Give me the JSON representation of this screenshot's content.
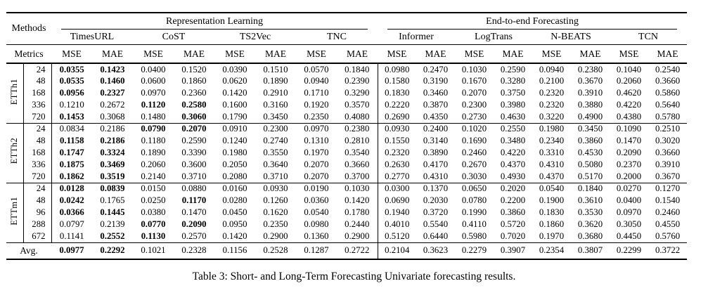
{
  "colors": {
    "background": "#ffffff",
    "text": "#000000",
    "rule": "#000000"
  },
  "caption": "Table 3: Short- and Long-Term Forecasting Univariate forecasting results.",
  "table": {
    "corner_top_label": "Methods",
    "corner_bottom_label": "Metrics",
    "metrics_per_method": [
      "MSE",
      "MAE"
    ],
    "group_headers": [
      {
        "label": "Representation Learning",
        "methods": [
          "TimesURL",
          "CoST",
          "TS2Vec",
          "TNC"
        ]
      },
      {
        "label": "End-to-end Forecasting",
        "methods": [
          "Informer",
          "LogTrans",
          "N-BEATS",
          "TCN"
        ]
      }
    ],
    "row_groups": [
      {
        "name": "ETTh1",
        "rows": [
          {
            "horizon": "24",
            "values": [
              "0.0355",
              "0.1423",
              "0.0400",
              "0.1520",
              "0.0390",
              "0.1510",
              "0.0570",
              "0.1840",
              "0.0980",
              "0.2470",
              "0.1030",
              "0.2590",
              "0.0940",
              "0.2380",
              "0.1040",
              "0.2540"
            ],
            "bold": [
              0,
              1
            ]
          },
          {
            "horizon": "48",
            "values": [
              "0.0535",
              "0.1460",
              "0.0600",
              "0.1860",
              "0.0620",
              "0.1890",
              "0.0940",
              "0.2390",
              "0.1580",
              "0.3190",
              "0.1670",
              "0.3280",
              "0.2100",
              "0.3670",
              "0.2060",
              "0.3660"
            ],
            "bold": [
              0,
              1
            ]
          },
          {
            "horizon": "168",
            "values": [
              "0.0956",
              "0.2327",
              "0.0970",
              "0.2360",
              "0.1420",
              "0.2910",
              "0.1710",
              "0.3290",
              "0.1830",
              "0.3460",
              "0.2070",
              "0.3750",
              "0.2320",
              "0.3910",
              "0.4620",
              "0.5860"
            ],
            "bold": [
              0,
              1
            ]
          },
          {
            "horizon": "336",
            "values": [
              "0.1210",
              "0.2672",
              "0.1120",
              "0.2580",
              "0.1600",
              "0.3160",
              "0.1920",
              "0.3570",
              "0.2220",
              "0.3870",
              "0.2300",
              "0.3980",
              "0.2320",
              "0.3880",
              "0.4220",
              "0.5640"
            ],
            "bold": [
              2,
              3
            ]
          },
          {
            "horizon": "720",
            "values": [
              "0.1453",
              "0.3068",
              "0.1480",
              "0.3060",
              "0.1790",
              "0.3450",
              "0.2350",
              "0.4080",
              "0.2690",
              "0.4350",
              "0.2730",
              "0.4630",
              "0.3220",
              "0.4900",
              "0.4380",
              "0.5780"
            ],
            "bold": [
              0,
              3
            ]
          }
        ]
      },
      {
        "name": "ETTh2",
        "rows": [
          {
            "horizon": "24",
            "values": [
              "0.0834",
              "0.2186",
              "0.0790",
              "0.2070",
              "0.0910",
              "0.2300",
              "0.0970",
              "0.2380",
              "0.0930",
              "0.2400",
              "0.1020",
              "0.2550",
              "0.1980",
              "0.3450",
              "0.1090",
              "0.2510"
            ],
            "bold": [
              2,
              3
            ]
          },
          {
            "horizon": "48",
            "values": [
              "0.1158",
              "0.2186",
              "0.1180",
              "0.2590",
              "0.1240",
              "0.2740",
              "0.1310",
              "0.2810",
              "0.1550",
              "0.3140",
              "0.1690",
              "0.3480",
              "0.2340",
              "0.3860",
              "0.1470",
              "0.3020"
            ],
            "bold": [
              0,
              1
            ]
          },
          {
            "horizon": "168",
            "values": [
              "0.1747",
              "0.3324",
              "0.1890",
              "0.3390",
              "0.1980",
              "0.3550",
              "0.1970",
              "0.3540",
              "0.2320",
              "0.3890",
              "0.2460",
              "0.4220",
              "0.3310",
              "0.4530",
              "0.2090",
              "0.3660"
            ],
            "bold": [
              0,
              1
            ]
          },
          {
            "horizon": "336",
            "values": [
              "0.1875",
              "0.3469",
              "0.2060",
              "0.3600",
              "0.2050",
              "0.3640",
              "0.2070",
              "0.3660",
              "0.2630",
              "0.4170",
              "0.2670",
              "0.4370",
              "0.4310",
              "0.5080",
              "0.2370",
              "0.3910"
            ],
            "bold": [
              0,
              1
            ]
          },
          {
            "horizon": "720",
            "values": [
              "0.1862",
              "0.3519",
              "0.2140",
              "0.3710",
              "0.2080",
              "0.3710",
              "0.2070",
              "0.3700",
              "0.2770",
              "0.4310",
              "0.3030",
              "0.4930",
              "0.4370",
              "0.5170",
              "0.2000",
              "0.3670"
            ],
            "bold": [
              0,
              1
            ]
          }
        ]
      },
      {
        "name": "ETTm1",
        "rows": [
          {
            "horizon": "24",
            "values": [
              "0.0128",
              "0.0839",
              "0.0150",
              "0.0880",
              "0.0160",
              "0.0930",
              "0.0190",
              "0.1030",
              "0.0300",
              "0.1370",
              "0.0650",
              "0.2020",
              "0.0540",
              "0.1840",
              "0.0270",
              "0.1270"
            ],
            "bold": [
              0,
              1
            ]
          },
          {
            "horizon": "48",
            "values": [
              "0.0242",
              "0.1765",
              "0.0250",
              "0.1170",
              "0.0280",
              "0.1260",
              "0.0360",
              "0.1420",
              "0.0690",
              "0.2030",
              "0.0780",
              "0.2200",
              "0.1900",
              "0.3610",
              "0.0400",
              "0.1540"
            ],
            "bold": [
              0,
              3
            ]
          },
          {
            "horizon": "96",
            "values": [
              "0.0366",
              "0.1445",
              "0.0380",
              "0.1470",
              "0.0450",
              "0.1620",
              "0.0540",
              "0.1780",
              "0.1940",
              "0.3720",
              "0.1990",
              "0.3860",
              "0.1830",
              "0.3530",
              "0.0970",
              "0.2460"
            ],
            "bold": [
              0,
              1
            ]
          },
          {
            "horizon": "288",
            "values": [
              "0.0797",
              "0.2139",
              "0.0770",
              "0.2090",
              "0.0950",
              "0.2350",
              "0.0980",
              "0.2440",
              "0.4010",
              "0.5540",
              "0.4110",
              "0.5720",
              "0.1860",
              "0.3620",
              "0.3050",
              "0.4550"
            ],
            "bold": [
              2,
              3
            ]
          },
          {
            "horizon": "672",
            "values": [
              "0.1141",
              "0.2552",
              "0.1130",
              "0.2570",
              "0.1420",
              "0.2900",
              "0.1360",
              "0.2900",
              "0.5120",
              "0.6440",
              "0.5980",
              "0.7020",
              "0.1970",
              "0.3680",
              "0.4450",
              "0.5760"
            ],
            "bold": [
              1,
              2
            ]
          }
        ]
      }
    ],
    "average_row": {
      "label": "Avg.",
      "values": [
        "0.0977",
        "0.2292",
        "0.1021",
        "0.2328",
        "0.1156",
        "0.2528",
        "0.1287",
        "0.2722",
        "0.2104",
        "0.3623",
        "0.2279",
        "0.3907",
        "0.2354",
        "0.3807",
        "0.2299",
        "0.3722"
      ],
      "bold": [
        0,
        1
      ]
    }
  }
}
